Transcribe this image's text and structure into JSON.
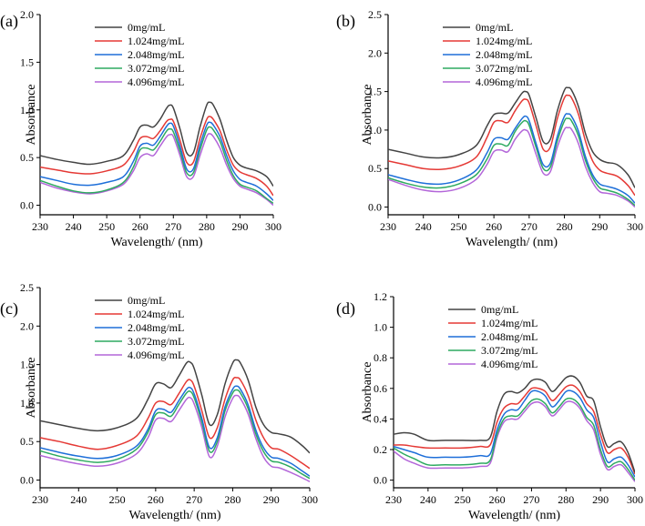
{
  "chart_data": [
    {
      "panel": "(a)",
      "type": "line",
      "xlabel": "Wavelength/ (nm)",
      "ylabel": "Absorbance",
      "xlim": [
        230,
        300
      ],
      "ylim": [
        -0.1,
        2.0
      ],
      "xticks": [
        "230",
        "240",
        "250",
        "260",
        "270",
        "280",
        "290",
        "300"
      ],
      "yticks": [
        "0.0",
        "0.5",
        "1.0",
        "1.5",
        "2.0"
      ],
      "x": [
        230,
        235,
        240,
        245,
        250,
        255,
        258,
        260,
        262,
        264,
        266,
        268,
        269,
        270,
        272,
        274,
        276,
        278,
        280,
        281,
        282,
        284,
        286,
        288,
        290,
        292,
        295,
        298,
        300
      ],
      "series": [
        {
          "name": "0mg/mL",
          "color": "#444444",
          "values": [
            0.52,
            0.48,
            0.45,
            0.43,
            0.46,
            0.52,
            0.68,
            0.82,
            0.84,
            0.82,
            0.9,
            1.02,
            1.05,
            1.02,
            0.8,
            0.55,
            0.55,
            0.82,
            1.05,
            1.08,
            1.05,
            0.9,
            0.68,
            0.5,
            0.42,
            0.39,
            0.36,
            0.3,
            0.2
          ]
        },
        {
          "name": "1.024mg/mL",
          "color": "#e53935",
          "values": [
            0.4,
            0.37,
            0.34,
            0.33,
            0.36,
            0.42,
            0.56,
            0.7,
            0.72,
            0.7,
            0.78,
            0.88,
            0.9,
            0.88,
            0.68,
            0.45,
            0.45,
            0.7,
            0.9,
            0.93,
            0.9,
            0.78,
            0.58,
            0.42,
            0.35,
            0.32,
            0.28,
            0.2,
            0.1
          ]
        },
        {
          "name": "2.048mg/mL",
          "color": "#1e6fd9",
          "values": [
            0.3,
            0.26,
            0.22,
            0.21,
            0.24,
            0.3,
            0.46,
            0.62,
            0.65,
            0.63,
            0.72,
            0.83,
            0.86,
            0.83,
            0.62,
            0.38,
            0.38,
            0.63,
            0.84,
            0.87,
            0.84,
            0.72,
            0.52,
            0.36,
            0.27,
            0.24,
            0.2,
            0.12,
            0.05
          ]
        },
        {
          "name": "3.072mg/mL",
          "color": "#2eaa60",
          "values": [
            0.26,
            0.2,
            0.15,
            0.13,
            0.16,
            0.24,
            0.4,
            0.58,
            0.6,
            0.58,
            0.67,
            0.78,
            0.8,
            0.77,
            0.57,
            0.34,
            0.34,
            0.58,
            0.79,
            0.82,
            0.79,
            0.67,
            0.47,
            0.31,
            0.22,
            0.19,
            0.15,
            0.07,
            0.02
          ]
        },
        {
          "name": "4.096mg/mL",
          "color": "#b366d9",
          "values": [
            0.24,
            0.18,
            0.14,
            0.12,
            0.15,
            0.22,
            0.36,
            0.5,
            0.54,
            0.52,
            0.62,
            0.72,
            0.74,
            0.72,
            0.52,
            0.3,
            0.3,
            0.52,
            0.72,
            0.75,
            0.72,
            0.6,
            0.42,
            0.28,
            0.2,
            0.17,
            0.13,
            0.06,
            0.0
          ]
        }
      ]
    },
    {
      "panel": "(b)",
      "type": "line",
      "xlabel": "Wavelength/ (nm)",
      "ylabel": "Absorbance",
      "xlim": [
        230,
        300
      ],
      "ylim": [
        -0.1,
        2.5
      ],
      "xticks": [
        "230",
        "240",
        "250",
        "260",
        "270",
        "280",
        "290",
        "300"
      ],
      "yticks": [
        "0.0",
        "0.5",
        "1.0",
        "1.5",
        "2.0",
        "2.5"
      ],
      "x": [
        230,
        235,
        240,
        245,
        250,
        255,
        258,
        260,
        262,
        264,
        266,
        268,
        269,
        270,
        272,
        274,
        276,
        278,
        280,
        281,
        282,
        284,
        286,
        288,
        290,
        292,
        295,
        298,
        300
      ],
      "series": [
        {
          "name": "0mg/mL",
          "color": "#444444",
          "values": [
            0.75,
            0.7,
            0.65,
            0.64,
            0.68,
            0.8,
            1.05,
            1.2,
            1.22,
            1.22,
            1.35,
            1.48,
            1.5,
            1.45,
            1.15,
            0.85,
            0.88,
            1.25,
            1.52,
            1.55,
            1.52,
            1.3,
            0.95,
            0.72,
            0.62,
            0.58,
            0.55,
            0.42,
            0.25
          ]
        },
        {
          "name": "1.024mg/mL",
          "color": "#e53935",
          "values": [
            0.6,
            0.55,
            0.5,
            0.49,
            0.53,
            0.65,
            0.9,
            1.1,
            1.12,
            1.1,
            1.25,
            1.38,
            1.4,
            1.35,
            1.05,
            0.75,
            0.78,
            1.15,
            1.42,
            1.45,
            1.42,
            1.2,
            0.85,
            0.6,
            0.48,
            0.44,
            0.4,
            0.28,
            0.15
          ]
        },
        {
          "name": "2.048mg/mL",
          "color": "#1e6fd9",
          "values": [
            0.42,
            0.36,
            0.31,
            0.3,
            0.35,
            0.48,
            0.7,
            0.88,
            0.9,
            0.88,
            1.02,
            1.15,
            1.18,
            1.12,
            0.82,
            0.55,
            0.57,
            0.92,
            1.18,
            1.21,
            1.18,
            0.98,
            0.65,
            0.42,
            0.3,
            0.27,
            0.23,
            0.15,
            0.05
          ]
        },
        {
          "name": "3.072mg/mL",
          "color": "#2eaa60",
          "values": [
            0.38,
            0.31,
            0.26,
            0.25,
            0.3,
            0.42,
            0.62,
            0.8,
            0.82,
            0.8,
            0.98,
            1.1,
            1.12,
            1.06,
            0.77,
            0.5,
            0.52,
            0.86,
            1.12,
            1.15,
            1.12,
            0.92,
            0.6,
            0.38,
            0.25,
            0.22,
            0.18,
            0.1,
            0.02
          ]
        },
        {
          "name": "4.096mg/mL",
          "color": "#b366d9",
          "values": [
            0.36,
            0.28,
            0.22,
            0.2,
            0.24,
            0.36,
            0.55,
            0.72,
            0.74,
            0.72,
            0.88,
            0.99,
            1.0,
            0.95,
            0.68,
            0.44,
            0.46,
            0.78,
            1.01,
            1.03,
            1.01,
            0.82,
            0.52,
            0.32,
            0.2,
            0.18,
            0.15,
            0.08,
            0.0
          ]
        }
      ]
    },
    {
      "panel": "(c)",
      "type": "line",
      "xlabel": "Wavelength/ (nm)",
      "ylabel": "Absorbance",
      "xlim": [
        230,
        300
      ],
      "ylim": [
        -0.1,
        2.5
      ],
      "xticks": [
        "230",
        "240",
        "250",
        "260",
        "270",
        "280",
        "290",
        "300"
      ],
      "yticks": [
        "0.0",
        "0.5",
        "1.0",
        "1.5",
        "2.0",
        "2.5"
      ],
      "x": [
        230,
        235,
        240,
        245,
        250,
        255,
        258,
        260,
        262,
        264,
        266,
        268,
        269,
        270,
        272,
        274,
        276,
        278,
        280,
        281,
        282,
        284,
        286,
        288,
        290,
        292,
        295,
        298,
        300
      ],
      "series": [
        {
          "name": "0mg/mL",
          "color": "#444444",
          "values": [
            0.77,
            0.72,
            0.67,
            0.64,
            0.68,
            0.8,
            1.05,
            1.25,
            1.25,
            1.2,
            1.35,
            1.52,
            1.53,
            1.45,
            1.1,
            0.72,
            0.85,
            1.25,
            1.52,
            1.56,
            1.52,
            1.3,
            0.95,
            0.72,
            0.62,
            0.6,
            0.56,
            0.45,
            0.35
          ]
        },
        {
          "name": "1.024mg/mL",
          "color": "#e53935",
          "values": [
            0.55,
            0.5,
            0.44,
            0.4,
            0.45,
            0.57,
            0.8,
            1.0,
            1.02,
            0.98,
            1.12,
            1.28,
            1.3,
            1.22,
            0.9,
            0.55,
            0.68,
            1.05,
            1.3,
            1.33,
            1.3,
            1.1,
            0.78,
            0.55,
            0.42,
            0.4,
            0.32,
            0.22,
            0.15
          ]
        },
        {
          "name": "2.048mg/mL",
          "color": "#1e6fd9",
          "values": [
            0.42,
            0.36,
            0.31,
            0.28,
            0.32,
            0.44,
            0.66,
            0.9,
            0.92,
            0.88,
            1.03,
            1.18,
            1.2,
            1.12,
            0.8,
            0.42,
            0.55,
            0.95,
            1.18,
            1.22,
            1.18,
            0.98,
            0.65,
            0.42,
            0.3,
            0.28,
            0.22,
            0.12,
            0.05
          ]
        },
        {
          "name": "3.072mg/mL",
          "color": "#2eaa60",
          "values": [
            0.38,
            0.31,
            0.26,
            0.23,
            0.27,
            0.4,
            0.62,
            0.85,
            0.87,
            0.83,
            0.98,
            1.13,
            1.15,
            1.07,
            0.75,
            0.37,
            0.5,
            0.9,
            1.13,
            1.17,
            1.13,
            0.93,
            0.6,
            0.37,
            0.25,
            0.23,
            0.17,
            0.08,
            0.02
          ]
        },
        {
          "name": "4.096mg/mL",
          "color": "#b366d9",
          "values": [
            0.32,
            0.26,
            0.21,
            0.18,
            0.22,
            0.34,
            0.55,
            0.78,
            0.8,
            0.76,
            0.9,
            1.05,
            1.07,
            0.99,
            0.68,
            0.3,
            0.44,
            0.82,
            1.06,
            1.1,
            1.06,
            0.86,
            0.54,
            0.3,
            0.18,
            0.16,
            0.1,
            0.03,
            -0.02
          ]
        }
      ]
    },
    {
      "panel": "(d)",
      "type": "line",
      "xlabel": "Wavelength/ (nm)",
      "ylabel": "Absorbance",
      "xlim": [
        230,
        300
      ],
      "ylim": [
        -0.05,
        1.2
      ],
      "xticks": [
        "230",
        "240",
        "250",
        "260",
        "270",
        "280",
        "290",
        "300"
      ],
      "yticks": [
        "0.0",
        "0.2",
        "0.4",
        "0.6",
        "0.8",
        "1.0",
        "1.2"
      ],
      "x": [
        230,
        233,
        236,
        240,
        245,
        250,
        255,
        258,
        260,
        262,
        264,
        266,
        268,
        270,
        272,
        274,
        276,
        278,
        280,
        282,
        284,
        286,
        288,
        290,
        292,
        294,
        296,
        298,
        300
      ],
      "series": [
        {
          "name": "0mg/mL",
          "color": "#444444",
          "values": [
            0.3,
            0.31,
            0.3,
            0.26,
            0.26,
            0.26,
            0.26,
            0.28,
            0.45,
            0.56,
            0.58,
            0.57,
            0.6,
            0.65,
            0.66,
            0.64,
            0.58,
            0.62,
            0.67,
            0.68,
            0.64,
            0.55,
            0.52,
            0.35,
            0.22,
            0.24,
            0.25,
            0.18,
            0.05
          ]
        },
        {
          "name": "1.024mg/mL",
          "color": "#e53935",
          "values": [
            0.23,
            0.23,
            0.22,
            0.21,
            0.21,
            0.21,
            0.22,
            0.23,
            0.38,
            0.47,
            0.5,
            0.5,
            0.55,
            0.6,
            0.6,
            0.58,
            0.52,
            0.56,
            0.61,
            0.62,
            0.58,
            0.5,
            0.45,
            0.3,
            0.18,
            0.2,
            0.21,
            0.15,
            0.04
          ]
        },
        {
          "name": "2.048mg/mL",
          "color": "#1e6fd9",
          "values": [
            0.22,
            0.2,
            0.18,
            0.15,
            0.15,
            0.15,
            0.16,
            0.17,
            0.33,
            0.43,
            0.46,
            0.46,
            0.52,
            0.58,
            0.58,
            0.55,
            0.48,
            0.52,
            0.58,
            0.58,
            0.54,
            0.46,
            0.41,
            0.25,
            0.12,
            0.14,
            0.15,
            0.1,
            0.02
          ]
        },
        {
          "name": "3.072mg/mL",
          "color": "#2eaa60",
          "values": [
            0.21,
            0.17,
            0.14,
            0.1,
            0.1,
            0.1,
            0.11,
            0.13,
            0.3,
            0.4,
            0.42,
            0.42,
            0.47,
            0.52,
            0.53,
            0.5,
            0.44,
            0.48,
            0.53,
            0.53,
            0.49,
            0.41,
            0.36,
            0.2,
            0.09,
            0.11,
            0.12,
            0.07,
            0.0
          ]
        },
        {
          "name": "4.096mg/mL",
          "color": "#b366d9",
          "values": [
            0.19,
            0.14,
            0.11,
            0.08,
            0.08,
            0.08,
            0.09,
            0.11,
            0.28,
            0.38,
            0.4,
            0.4,
            0.45,
            0.5,
            0.51,
            0.48,
            0.42,
            0.46,
            0.51,
            0.51,
            0.47,
            0.39,
            0.33,
            0.17,
            0.07,
            0.09,
            0.1,
            0.05,
            -0.01
          ]
        }
      ]
    }
  ]
}
